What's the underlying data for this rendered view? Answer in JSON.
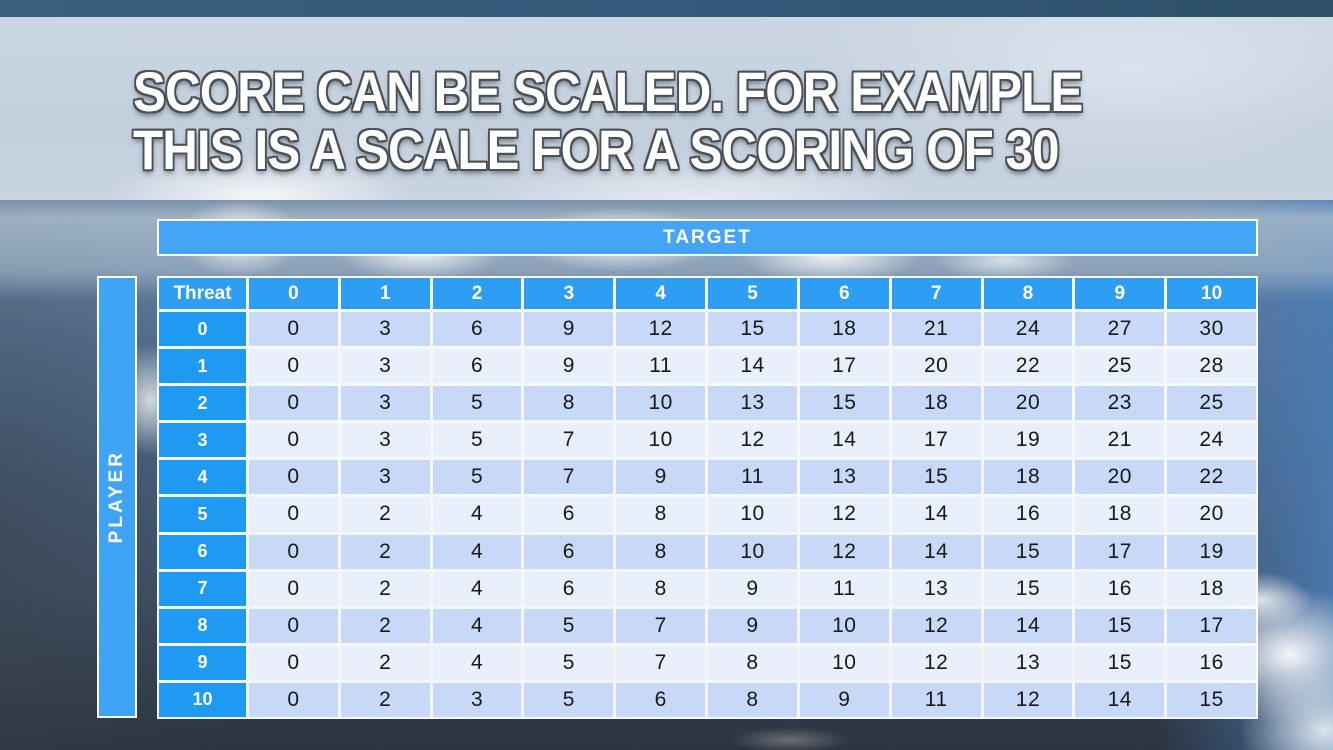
{
  "slide": {
    "title_line1": "SCORE CAN BE SCALED. FOR EXAMPLE",
    "title_line2": "THIS IS A SCALE FOR A SCORING OF 30"
  },
  "table": {
    "target_label": "TARGET",
    "player_label": "PLAYER",
    "corner_label": "Threat",
    "column_headers": [
      "0",
      "1",
      "2",
      "3",
      "4",
      "5",
      "6",
      "7",
      "8",
      "9",
      "10"
    ],
    "row_headers": [
      "0",
      "1",
      "2",
      "3",
      "4",
      "5",
      "6",
      "7",
      "8",
      "9",
      "10"
    ],
    "rows": [
      [
        0,
        3,
        6,
        9,
        12,
        15,
        18,
        21,
        24,
        27,
        30
      ],
      [
        0,
        3,
        6,
        9,
        11,
        14,
        17,
        20,
        22,
        25,
        28
      ],
      [
        0,
        3,
        5,
        8,
        10,
        13,
        15,
        18,
        20,
        23,
        25
      ],
      [
        0,
        3,
        5,
        7,
        10,
        12,
        14,
        17,
        19,
        21,
        24
      ],
      [
        0,
        3,
        5,
        7,
        9,
        11,
        13,
        15,
        18,
        20,
        22
      ],
      [
        0,
        2,
        4,
        6,
        8,
        10,
        12,
        14,
        16,
        18,
        20
      ],
      [
        0,
        2,
        4,
        6,
        8,
        10,
        12,
        14,
        15,
        17,
        19
      ],
      [
        0,
        2,
        4,
        6,
        8,
        9,
        11,
        13,
        15,
        16,
        18
      ],
      [
        0,
        2,
        4,
        5,
        7,
        9,
        10,
        12,
        14,
        15,
        17
      ],
      [
        0,
        2,
        4,
        5,
        7,
        8,
        10,
        12,
        13,
        15,
        16
      ],
      [
        0,
        2,
        3,
        5,
        6,
        8,
        9,
        11,
        12,
        14,
        15
      ]
    ]
  },
  "chart_data": {
    "type": "table",
    "title": "Score scale for a scoring of 30",
    "x_axis": "TARGET",
    "y_axis": "PLAYER",
    "columns": [
      "Threat",
      "0",
      "1",
      "2",
      "3",
      "4",
      "5",
      "6",
      "7",
      "8",
      "9",
      "10"
    ],
    "rows": [
      [
        "0",
        0,
        3,
        6,
        9,
        12,
        15,
        18,
        21,
        24,
        27,
        30
      ],
      [
        "1",
        0,
        3,
        6,
        9,
        11,
        14,
        17,
        20,
        22,
        25,
        28
      ],
      [
        "2",
        0,
        3,
        5,
        8,
        10,
        13,
        15,
        18,
        20,
        23,
        25
      ],
      [
        "3",
        0,
        3,
        5,
        7,
        10,
        12,
        14,
        17,
        19,
        21,
        24
      ],
      [
        "4",
        0,
        3,
        5,
        7,
        9,
        11,
        13,
        15,
        18,
        20,
        22
      ],
      [
        "5",
        0,
        2,
        4,
        6,
        8,
        10,
        12,
        14,
        16,
        18,
        20
      ],
      [
        "6",
        0,
        2,
        4,
        6,
        8,
        10,
        12,
        14,
        15,
        17,
        19
      ],
      [
        "7",
        0,
        2,
        4,
        6,
        8,
        9,
        11,
        13,
        15,
        16,
        18
      ],
      [
        "8",
        0,
        2,
        4,
        5,
        7,
        9,
        10,
        12,
        14,
        15,
        17
      ],
      [
        "9",
        0,
        2,
        4,
        5,
        7,
        8,
        10,
        12,
        13,
        15,
        16
      ],
      [
        "10",
        0,
        2,
        3,
        5,
        6,
        8,
        9,
        11,
        12,
        14,
        15
      ]
    ]
  },
  "colors": {
    "target_bar_blue": "#44A5F7",
    "player_bar_blue": "#3FA3F6",
    "column_header_blue": "#2E9EF4",
    "row_header_blue": "#1E9AF3",
    "row_shade_dark": "#C7D9F6",
    "row_shade_light": "#E9EFFB",
    "cell_text": "#17191C",
    "header_text": "#FFFFFF",
    "title_text": "#FFFFFF",
    "title_outline": "#4B5056"
  }
}
